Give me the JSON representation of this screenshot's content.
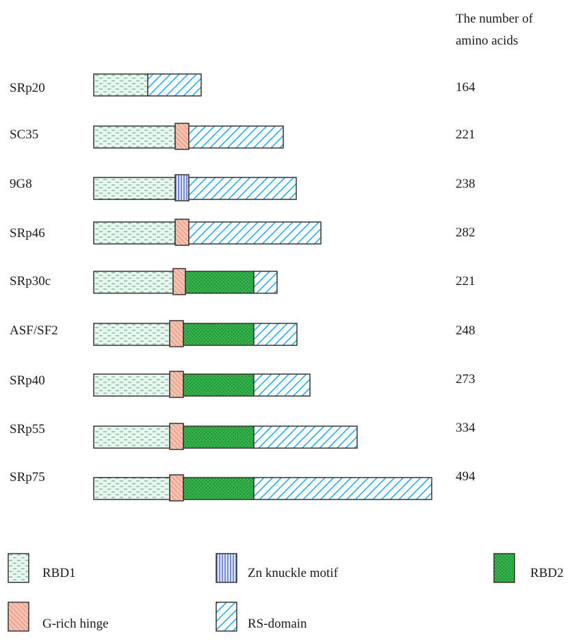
{
  "header": {
    "line1": "The number of",
    "line2": "amino acids"
  },
  "proteins": [
    {
      "name": "SRp20",
      "amino_acids": "164",
      "domains": [
        "RBD1",
        "RS-domain"
      ]
    },
    {
      "name": "SC35",
      "amino_acids": "221",
      "domains": [
        "RBD1",
        "G-rich hinge",
        "RS-domain"
      ]
    },
    {
      "name": "9G8",
      "amino_acids": "238",
      "domains": [
        "RBD1",
        "Zn knuckle motif",
        "RS-domain"
      ]
    },
    {
      "name": "SRp46",
      "amino_acids": "282",
      "domains": [
        "RBD1",
        "G-rich hinge",
        "RS-domain"
      ]
    },
    {
      "name": "SRp30c",
      "amino_acids": "221",
      "domains": [
        "RBD1",
        "G-rich hinge",
        "RBD2",
        "RS-domain"
      ]
    },
    {
      "name": "ASF/SF2",
      "amino_acids": "248",
      "domains": [
        "RBD1",
        "G-rich hinge",
        "RBD2",
        "RS-domain"
      ]
    },
    {
      "name": "SRp40",
      "amino_acids": "273",
      "domains": [
        "RBD1",
        "G-rich hinge",
        "RBD2",
        "RS-domain"
      ]
    },
    {
      "name": "SRp55",
      "amino_acids": "334",
      "domains": [
        "RBD1",
        "G-rich hinge",
        "RBD2",
        "RS-domain"
      ]
    },
    {
      "name": "SRp75",
      "amino_acids": "494",
      "domains": [
        "RBD1",
        "G-rich hinge",
        "RBD2",
        "RS-domain"
      ]
    }
  ],
  "legend": [
    {
      "label": "RBD1",
      "pattern": "rbd1"
    },
    {
      "label": "Zn knuckle motif",
      "pattern": "zn"
    },
    {
      "label": "RBD2",
      "pattern": "rbd2"
    },
    {
      "label": "G-rich hinge",
      "pattern": "hinge"
    },
    {
      "label": "RS-domain",
      "pattern": "rs"
    }
  ],
  "colors": {
    "rbd1_fill": "#eaf7f0",
    "rbd1_dash": "#4aa86f",
    "rbd2_fill": "#33b24a",
    "rbd2_dot": "#1e7f2e",
    "hinge_fill": "#f6c3b2",
    "hinge_line": "#d8765a",
    "zn_fill": "#dde3f8",
    "zn_line": "#3a55b8",
    "rs_fill": "#ffffff",
    "rs_line": "#1aa7e8",
    "outline": "#333333"
  }
}
